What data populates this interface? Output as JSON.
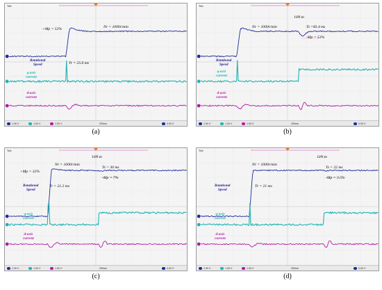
{
  "status_bar": {
    "ch1": "1.00 V",
    "ch2": "1.00 V",
    "ch3": "1.00 V",
    "timebase": "200ms",
    "trigger": "0.00 V",
    "ch1_color": "#1f2a9a",
    "ch2_color": "#1fb3b3",
    "ch3_color": "#b21aa8"
  },
  "scope_header": "Tek",
  "panels": [
    {
      "caption": "(a)",
      "labels": {
        "speed": [
          "Rotational",
          "Speed"
        ],
        "q": [
          "q-axis",
          "current"
        ],
        "d": [
          "d-axis",
          "current"
        ]
      },
      "annotations": {
        "mp_over": "+Mp = 52%",
        "nr": "Nr = 1000r/min",
        "tr": "Tr = 25.6 ms"
      }
    },
    {
      "caption": "(b)",
      "labels": {
        "speed": [
          "Rotational",
          "Speed"
        ],
        "q": [
          "q-axis",
          "current"
        ],
        "d": [
          "d-axis",
          "current"
        ]
      },
      "annotations": {
        "nr": "Nr = 1000r/min",
        "load": "10N·m",
        "ts": "Ts =83.4 ms",
        "mp_under": "-Mp = 53%"
      }
    },
    {
      "caption": "(c)",
      "labels": {
        "speed": [
          "Rotational",
          "Speed"
        ],
        "q": [
          "q-axis",
          "current"
        ],
        "d": [
          "d-axis",
          "current"
        ]
      },
      "annotations": {
        "nr": "Nr = 1000r/min",
        "load": "10N·m",
        "mp_over": "+Mp = 32%",
        "ts": "Ts = 30 ms",
        "mp_under": "-Mp = 7%",
        "tr": "Tr = 21.2 ms"
      }
    },
    {
      "caption": "(d)",
      "labels": {
        "speed": [
          "Rotational",
          "Speed"
        ],
        "q": [
          "q-axis",
          "current"
        ],
        "d": [
          "d-axis",
          "current"
        ]
      },
      "annotations": {
        "nr": "Nr = 1000r/min",
        "load": "10N·m",
        "ts": "Ts = 22 ms",
        "mp_under": "-Mp = 3.5%",
        "tr": "Tr = 21 ms"
      }
    }
  ],
  "chart_data": [
    {
      "type": "line",
      "title": "",
      "series": [
        {
          "name": "Rotational Speed"
        },
        {
          "name": "q-axis current"
        },
        {
          "name": "d-axis current"
        }
      ],
      "overshoot_percent": 52,
      "rise_time_ms": 25.6,
      "speed_reference_r_per_min": 1000,
      "grid": true
    },
    {
      "type": "line",
      "title": "",
      "series": [
        {
          "name": "Rotational Speed"
        },
        {
          "name": "q-axis current"
        },
        {
          "name": "d-axis current"
        }
      ],
      "load_disturbance_Nm": 10,
      "settling_time_ms": 83.4,
      "undershoot_percent": 53,
      "speed_reference_r_per_min": 1000,
      "grid": true
    },
    {
      "type": "line",
      "title": "",
      "series": [
        {
          "name": "Rotational Speed"
        },
        {
          "name": "q-axis current"
        },
        {
          "name": "d-axis current"
        }
      ],
      "overshoot_percent": 32,
      "rise_time_ms": 21.2,
      "settling_time_ms": 30,
      "undershoot_percent": 7,
      "load_disturbance_Nm": 10,
      "speed_reference_r_per_min": 1000,
      "grid": true
    },
    {
      "type": "line",
      "title": "",
      "series": [
        {
          "name": "Rotational Speed"
        },
        {
          "name": "q-axis current"
        },
        {
          "name": "d-axis current"
        }
      ],
      "rise_time_ms": 21,
      "settling_time_ms": 22,
      "undershoot_percent": 3.5,
      "load_disturbance_Nm": 10,
      "speed_reference_r_per_min": 1000,
      "grid": true
    }
  ]
}
